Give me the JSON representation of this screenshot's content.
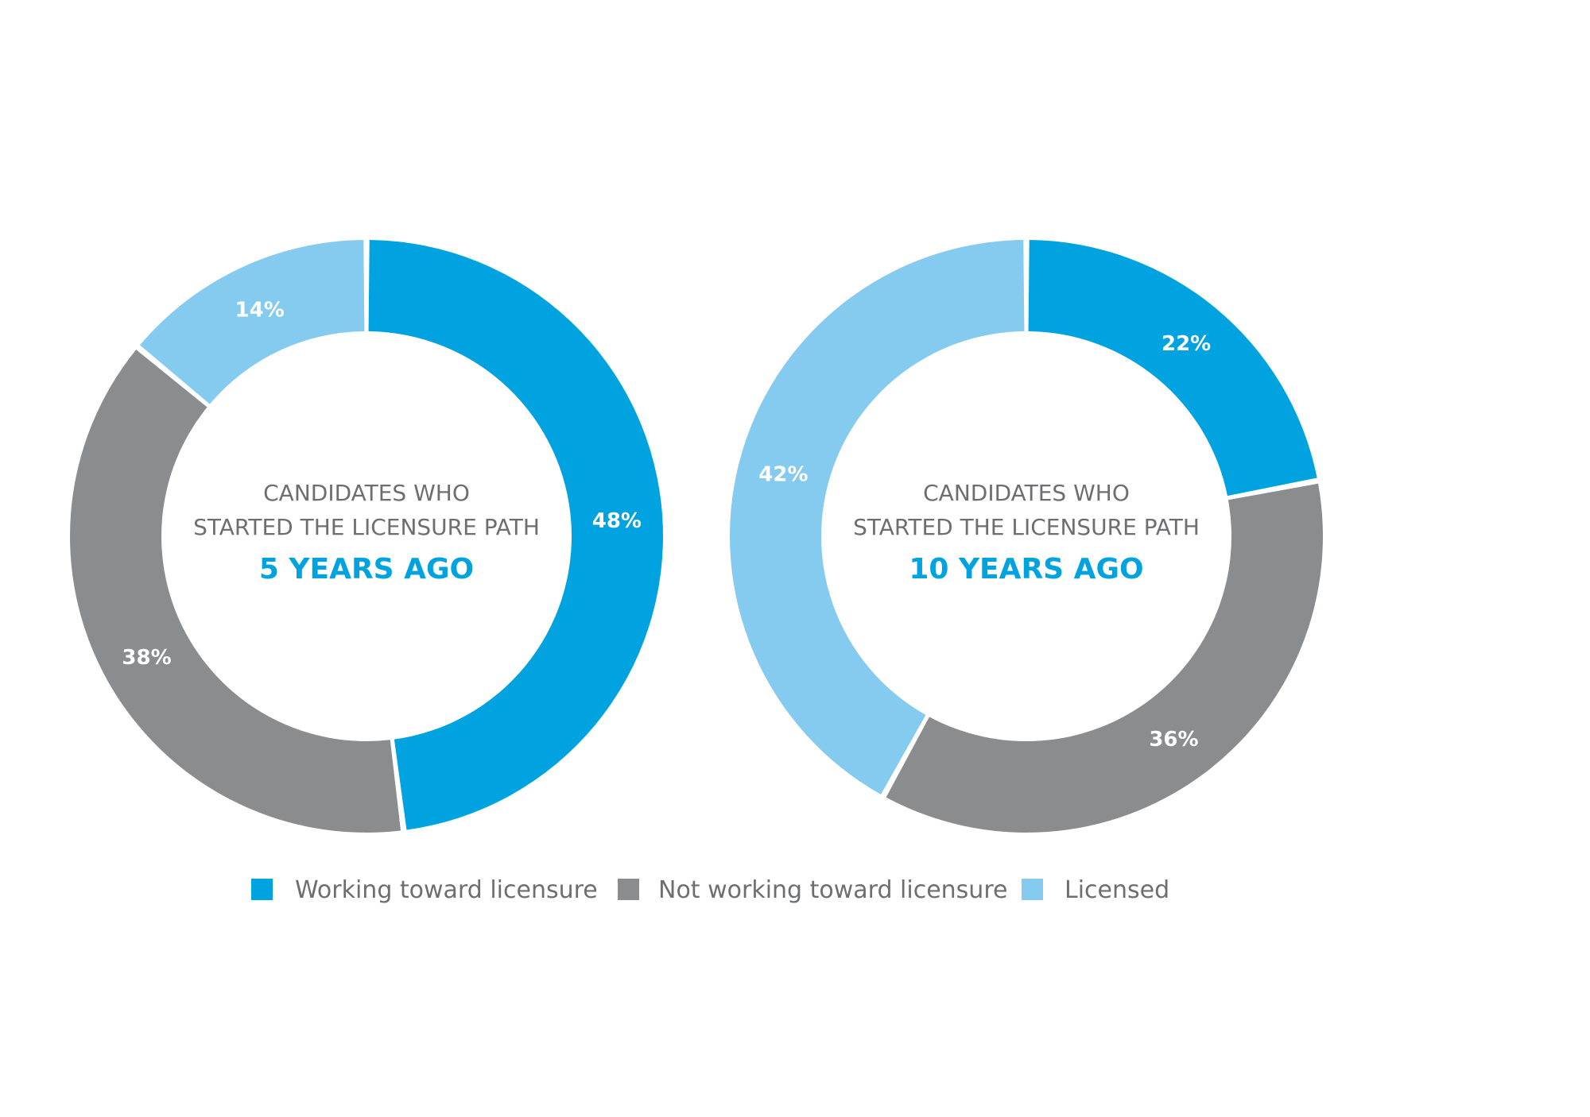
{
  "chart_data": [
    {
      "type": "pie",
      "variant": "donut",
      "center_text": [
        "CANDIDATES WHO",
        "STARTED THE LICENSURE PATH"
      ],
      "center_highlight": "5 YEARS AGO",
      "slices": [
        {
          "name": "Working toward licensure",
          "value": 48,
          "label": "48%"
        },
        {
          "name": "Not working toward licensure",
          "value": 38,
          "label": "38%"
        },
        {
          "name": "Licensed",
          "value": 14,
          "label": "14%"
        }
      ]
    },
    {
      "type": "pie",
      "variant": "donut",
      "center_text": [
        "CANDIDATES WHO",
        "STARTED THE LICENSURE PATH"
      ],
      "center_highlight": "10 YEARS AGO",
      "slices": [
        {
          "name": "Working toward licensure",
          "value": 22,
          "label": "22%"
        },
        {
          "name": "Not working toward licensure",
          "value": 36,
          "label": "36%"
        },
        {
          "name": "Licensed",
          "value": 42,
          "label": "42%"
        }
      ]
    }
  ],
  "legend": [
    {
      "name": "Working toward licensure",
      "color": "#00a3e0"
    },
    {
      "name": "Not working toward licensure",
      "color": "#8b8c8e"
    },
    {
      "name": "Licensed",
      "color": "#85cbf0"
    }
  ],
  "colors": {
    "highlight_text": "#00a3e0",
    "center_text": "#6d6e70",
    "slice_label": "#ffffff"
  }
}
